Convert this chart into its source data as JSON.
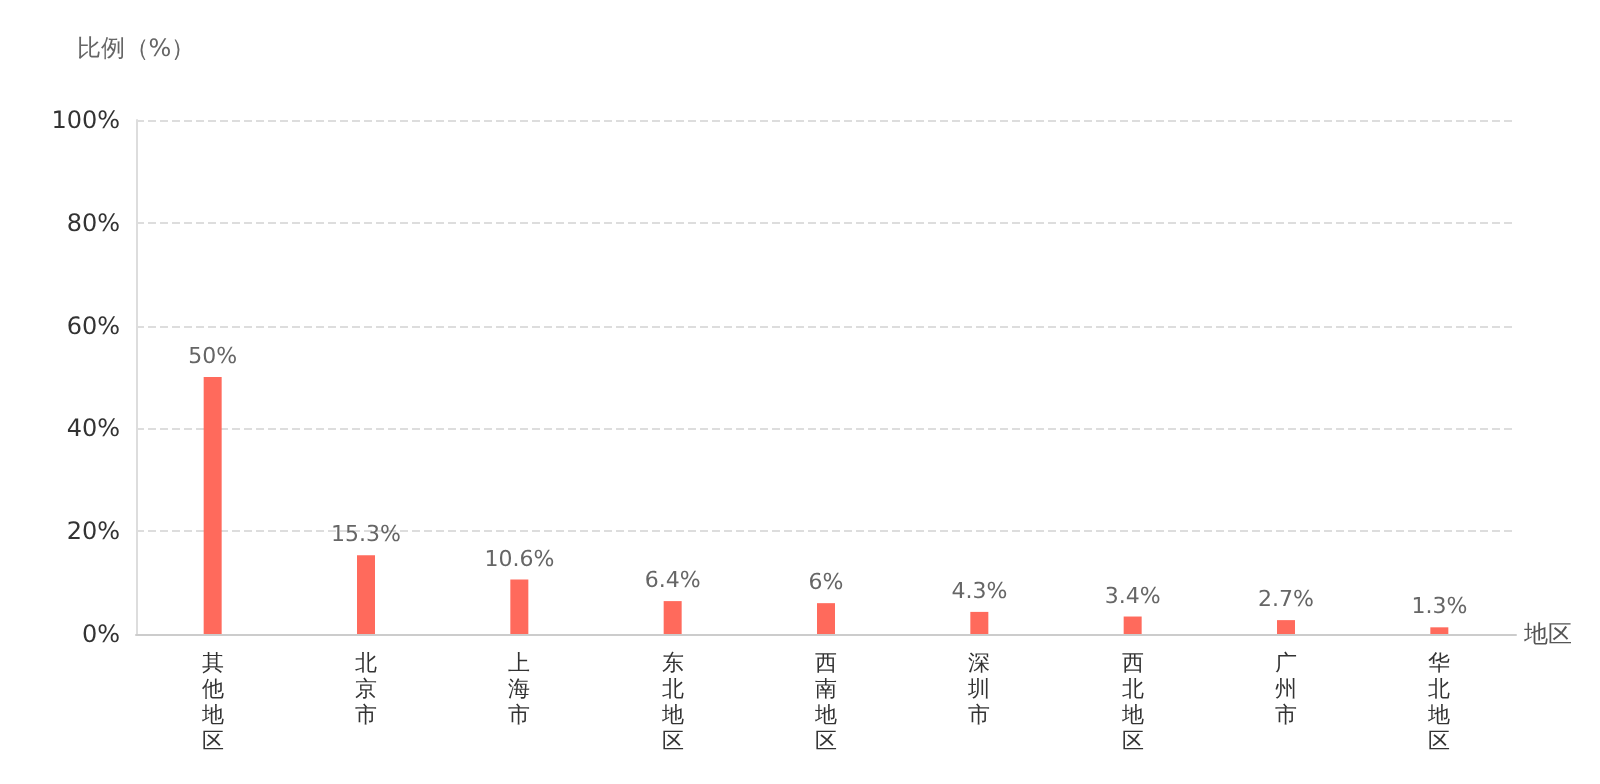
{
  "chart_data": {
    "type": "bar",
    "ylabel": "比例（%）",
    "xlabel": "地区",
    "categories": [
      "其他地区",
      "北京市",
      "上海市",
      "东北地区",
      "西南地区",
      "深圳市",
      "西北地区",
      "广州市",
      "华北地区"
    ],
    "values": [
      50,
      15.3,
      10.6,
      6.4,
      6,
      4.3,
      3.4,
      2.7,
      1.3
    ],
    "value_labels": [
      "50%",
      "15.3%",
      "10.6%",
      "6.4%",
      "6%",
      "4.3%",
      "3.4%",
      "2.7%",
      "1.3%"
    ],
    "color": "#ff6a5c",
    "ylim": [
      0,
      100
    ],
    "yticks": [
      {
        "value": 0,
        "label": "0%"
      },
      {
        "value": 20,
        "label": "20%"
      },
      {
        "value": 40,
        "label": "40%"
      },
      {
        "value": 60,
        "label": "60%"
      },
      {
        "value": 80,
        "label": "80%"
      },
      {
        "value": 100,
        "label": "100%"
      }
    ],
    "grid": "y"
  }
}
